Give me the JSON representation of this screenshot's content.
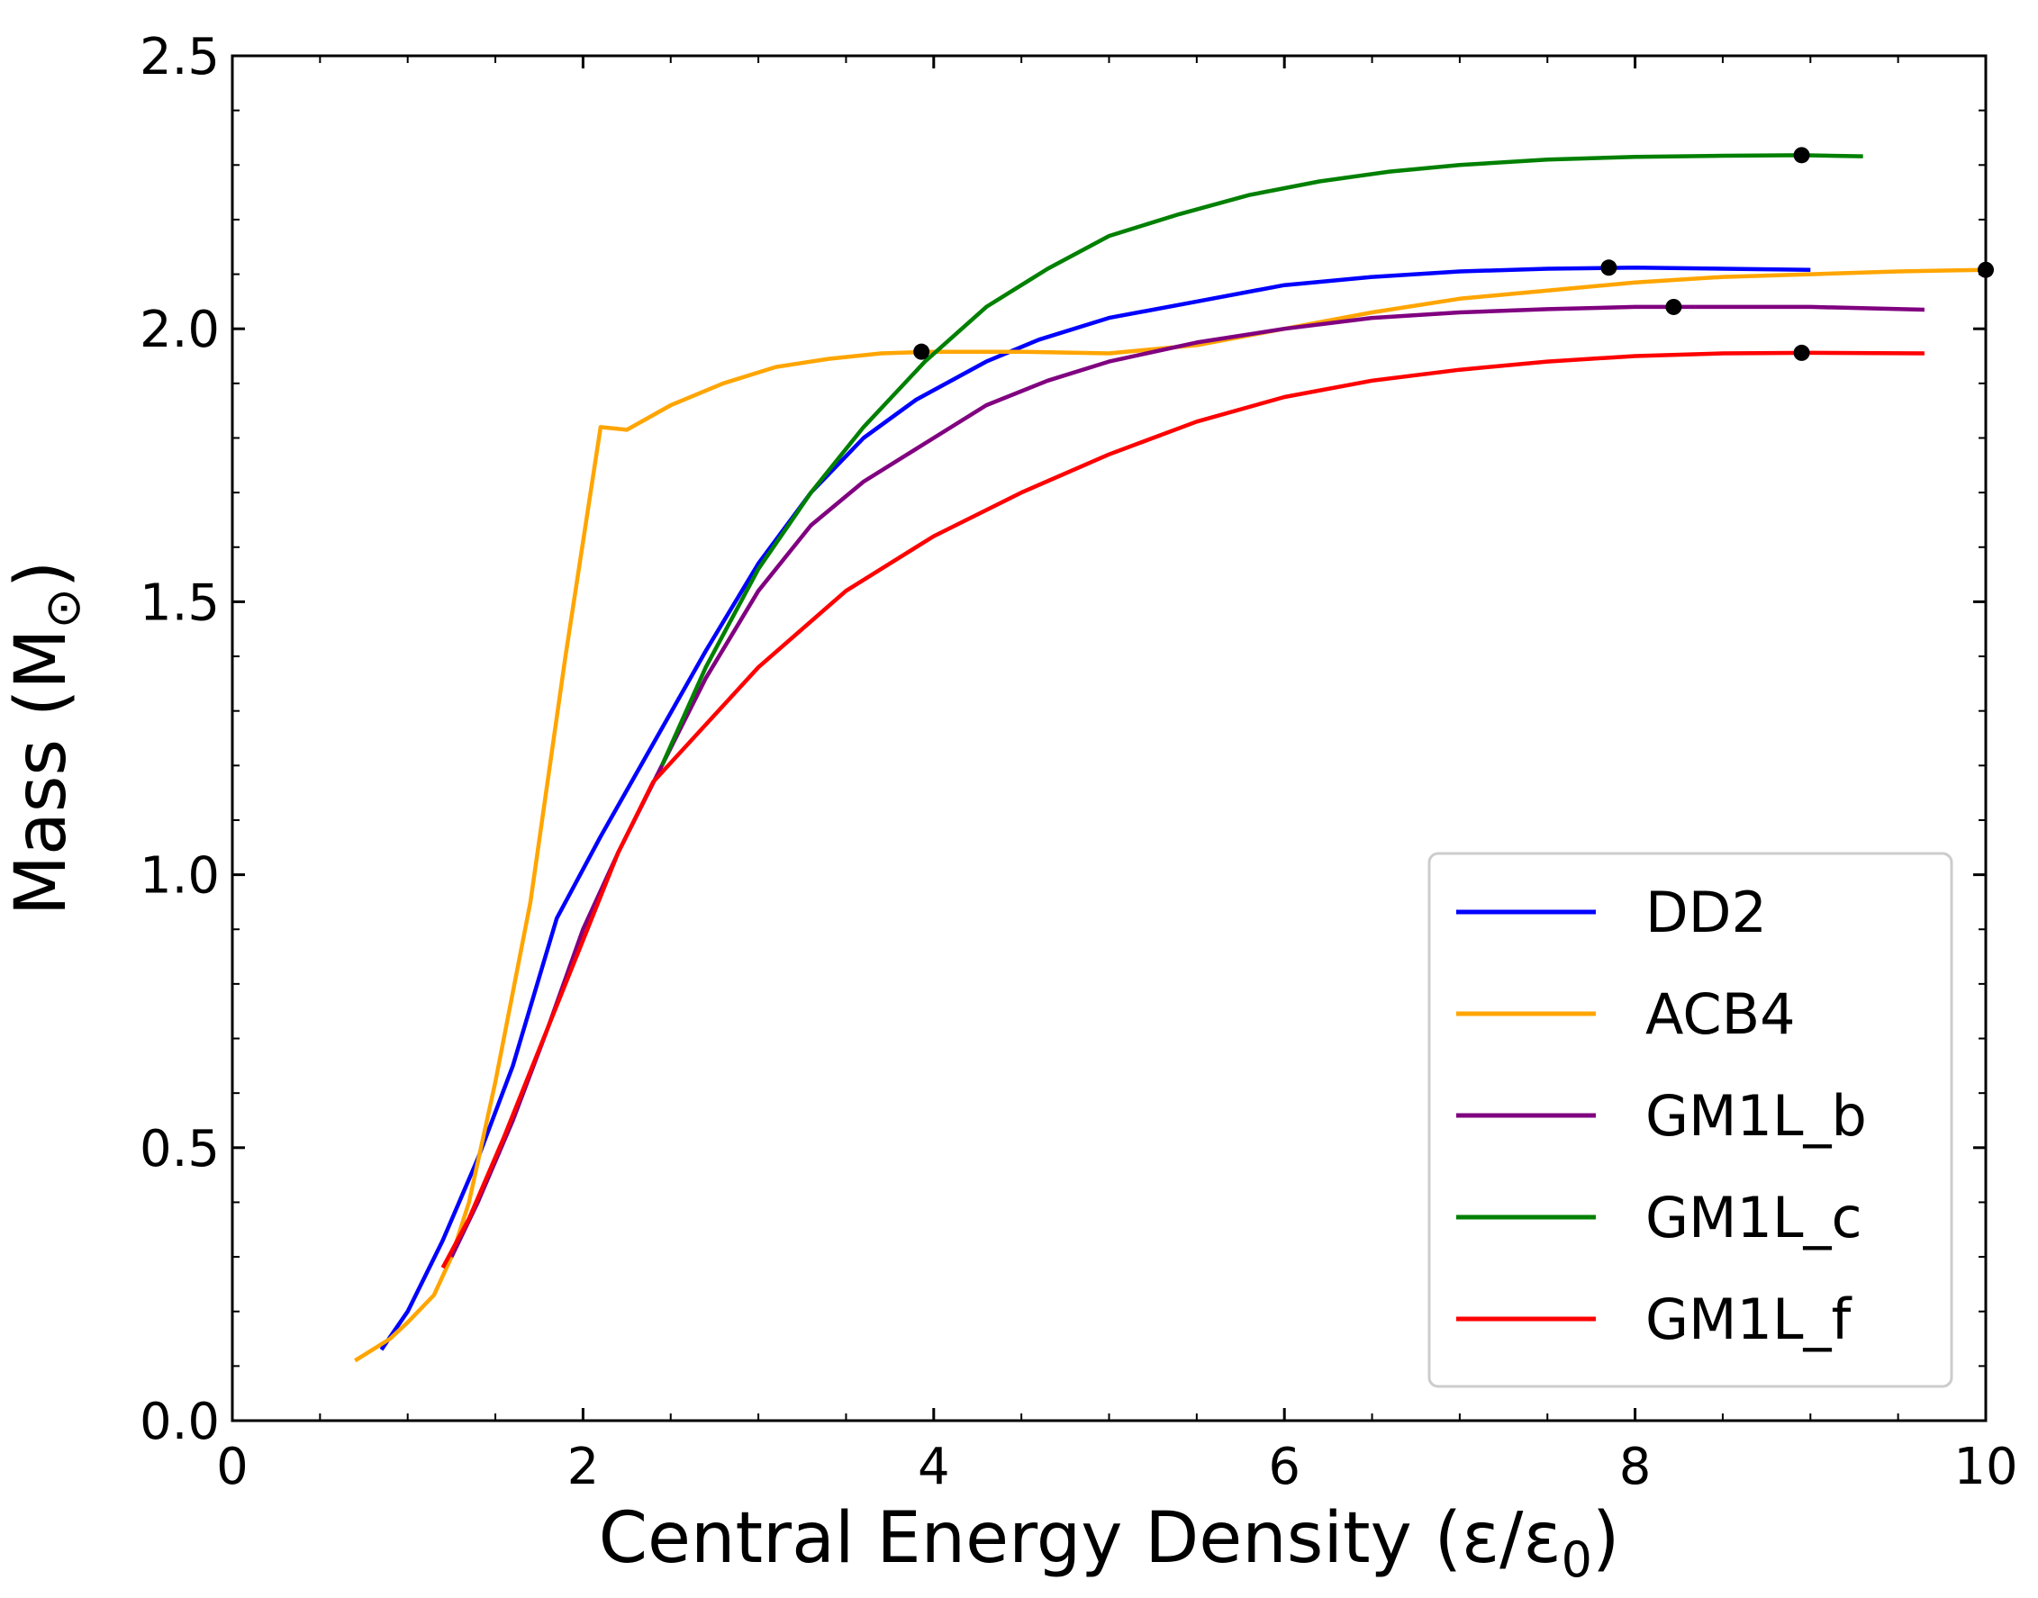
{
  "chart_data": {
    "type": "line",
    "title": "",
    "xlabel": "Central Energy Density (ε/ε",
    "xlabel_sub": "0",
    "xlabel_close": ")",
    "ylabel": "Mass (M",
    "ylabel_sub": "⊙",
    "ylabel_close": ")",
    "xlim": [
      0,
      10
    ],
    "ylim": [
      0,
      2.5
    ],
    "xticks": [
      0,
      2,
      4,
      6,
      8,
      10
    ],
    "xtick_labels": [
      "0",
      "2",
      "4",
      "6",
      "8",
      "10"
    ],
    "yticks": [
      0.0,
      0.5,
      1.0,
      1.5,
      2.0,
      2.5
    ],
    "ytick_labels": [
      "0.0",
      "0.5",
      "1.0",
      "1.5",
      "2.0",
      "2.5"
    ],
    "x_minor_step": 0.5,
    "y_minor_step": 0.1,
    "legend_position": "lower-right",
    "series": [
      {
        "name": "DD2",
        "color": "#0000ff",
        "x": [
          0.85,
          1.0,
          1.2,
          1.4,
          1.6,
          1.85,
          2.1,
          2.4,
          2.7,
          3.0,
          3.3,
          3.6,
          3.9,
          4.3,
          4.6,
          5.0,
          5.5,
          6.0,
          6.5,
          7.0,
          7.5,
          8.0,
          8.5,
          9.0
        ],
        "y": [
          0.13,
          0.2,
          0.33,
          0.48,
          0.65,
          0.92,
          1.07,
          1.24,
          1.41,
          1.57,
          1.7,
          1.8,
          1.87,
          1.94,
          1.98,
          2.02,
          2.05,
          2.08,
          2.095,
          2.105,
          2.11,
          2.112,
          2.11,
          2.108
        ],
        "max_point": {
          "x": 7.85,
          "y": 2.112
        }
      },
      {
        "name": "ACB4",
        "color": "#ffa500",
        "x": [
          0.7,
          0.9,
          1.0,
          1.15,
          1.25,
          1.35,
          1.5,
          1.7,
          1.9,
          2.1,
          2.25,
          2.5,
          2.8,
          3.1,
          3.4,
          3.7,
          4.0,
          4.5,
          5.0,
          5.5,
          6.0,
          6.5,
          7.0,
          7.5,
          8.0,
          8.5,
          9.0,
          9.5,
          10.0
        ],
        "y": [
          0.11,
          0.15,
          0.18,
          0.23,
          0.3,
          0.4,
          0.62,
          0.95,
          1.4,
          1.82,
          1.815,
          1.86,
          1.9,
          1.93,
          1.945,
          1.955,
          1.958,
          1.958,
          1.955,
          1.97,
          2.0,
          2.03,
          2.055,
          2.07,
          2.085,
          2.095,
          2.1,
          2.105,
          2.108
        ],
        "max_point": {
          "x": 3.93,
          "y": 1.958
        },
        "max_point_2": {
          "x": 10.0,
          "y": 2.108
        }
      },
      {
        "name": "GM1L_b",
        "color": "#800080",
        "x": [
          1.25,
          1.4,
          1.6,
          1.8,
          2.0,
          2.2,
          2.45,
          2.7,
          3.0,
          3.3,
          3.6,
          3.95,
          4.3,
          4.65,
          5.0,
          5.5,
          6.0,
          6.5,
          7.0,
          7.5,
          8.0,
          8.5,
          9.0,
          9.65
        ],
        "y": [
          0.3,
          0.4,
          0.55,
          0.72,
          0.9,
          1.04,
          1.2,
          1.36,
          1.52,
          1.64,
          1.72,
          1.79,
          1.86,
          1.905,
          1.94,
          1.975,
          2.0,
          2.02,
          2.03,
          2.036,
          2.04,
          2.04,
          2.04,
          2.035
        ],
        "max_point": {
          "x": 8.22,
          "y": 2.04
        }
      },
      {
        "name": "GM1L_c",
        "color": "#008000",
        "x": [
          2.45,
          2.7,
          3.0,
          3.3,
          3.6,
          3.95,
          4.3,
          4.65,
          5.0,
          5.4,
          5.8,
          6.2,
          6.6,
          7.0,
          7.5,
          8.0,
          8.5,
          8.95,
          9.3
        ],
        "y": [
          1.2,
          1.38,
          1.56,
          1.7,
          1.82,
          1.94,
          2.04,
          2.11,
          2.17,
          2.21,
          2.245,
          2.27,
          2.288,
          2.3,
          2.31,
          2.315,
          2.317,
          2.318,
          2.316
        ],
        "max_point": {
          "x": 8.95,
          "y": 2.318
        }
      },
      {
        "name": "GM1L_f",
        "color": "#ff0000",
        "x": [
          1.2,
          1.35,
          1.55,
          1.75,
          2.0,
          2.2,
          2.4,
          2.6,
          3.0,
          3.5,
          4.0,
          4.5,
          5.0,
          5.5,
          6.0,
          6.5,
          7.0,
          7.5,
          8.0,
          8.5,
          9.0,
          9.65
        ],
        "y": [
          0.28,
          0.37,
          0.52,
          0.68,
          0.88,
          1.04,
          1.17,
          1.24,
          1.38,
          1.52,
          1.62,
          1.7,
          1.77,
          1.83,
          1.875,
          1.905,
          1.925,
          1.94,
          1.95,
          1.955,
          1.956,
          1.955
        ],
        "max_point": {
          "x": 8.95,
          "y": 1.956
        }
      }
    ]
  }
}
